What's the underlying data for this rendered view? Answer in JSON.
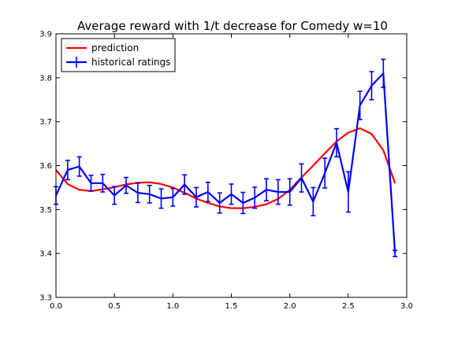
{
  "chart_data": {
    "type": "line",
    "title": "Average reward with 1/t decrease for Comedy w=10",
    "xlabel": "",
    "ylabel": "",
    "xlim": [
      0.0,
      3.0
    ],
    "ylim": [
      3.3,
      3.9
    ],
    "x_ticks": [
      "0.0",
      "0.5",
      "1.0",
      "1.5",
      "2.0",
      "2.5",
      "3.0"
    ],
    "y_ticks": [
      "3.3",
      "3.4",
      "3.5",
      "3.6",
      "3.7",
      "3.8",
      "3.9"
    ],
    "grid": false,
    "legend_position": "top-left",
    "series": [
      {
        "name": "prediction",
        "color": "#ff0000",
        "x": [
          0.0,
          0.1,
          0.2,
          0.3,
          0.4,
          0.5,
          0.6,
          0.7,
          0.8,
          0.9,
          1.0,
          1.1,
          1.2,
          1.3,
          1.4,
          1.5,
          1.6,
          1.7,
          1.8,
          1.9,
          2.0,
          2.1,
          2.2,
          2.3,
          2.4,
          2.5,
          2.6,
          2.7,
          2.8,
          2.9
        ],
        "values": [
          3.59,
          3.558,
          3.545,
          3.542,
          3.546,
          3.551,
          3.557,
          3.561,
          3.562,
          3.558,
          3.55,
          3.538,
          3.525,
          3.515,
          3.507,
          3.503,
          3.503,
          3.506,
          3.512,
          3.524,
          3.545,
          3.573,
          3.6,
          3.628,
          3.655,
          3.675,
          3.685,
          3.672,
          3.635,
          3.56
        ]
      },
      {
        "name": "historical ratings",
        "color": "#0000ff",
        "x": [
          0.0,
          0.1,
          0.2,
          0.3,
          0.4,
          0.5,
          0.6,
          0.7,
          0.8,
          0.9,
          1.0,
          1.1,
          1.2,
          1.3,
          1.4,
          1.5,
          1.6,
          1.7,
          1.8,
          1.9,
          2.0,
          2.1,
          2.2,
          2.3,
          2.4,
          2.5,
          2.6,
          2.7,
          2.8,
          2.9
        ],
        "values": [
          3.532,
          3.59,
          3.598,
          3.56,
          3.56,
          3.532,
          3.555,
          3.538,
          3.535,
          3.525,
          3.528,
          3.557,
          3.528,
          3.54,
          3.515,
          3.535,
          3.515,
          3.527,
          3.545,
          3.54,
          3.54,
          3.572,
          3.518,
          3.583,
          3.652,
          3.54,
          3.737,
          3.782,
          3.81,
          3.4
        ],
        "errors": [
          0.02,
          0.022,
          0.022,
          0.018,
          0.02,
          0.02,
          0.018,
          0.022,
          0.02,
          0.022,
          0.02,
          0.022,
          0.022,
          0.022,
          0.023,
          0.023,
          0.024,
          0.024,
          0.025,
          0.028,
          0.03,
          0.032,
          0.032,
          0.034,
          0.032,
          0.046,
          0.032,
          0.032,
          0.032,
          0.007
        ]
      }
    ]
  }
}
